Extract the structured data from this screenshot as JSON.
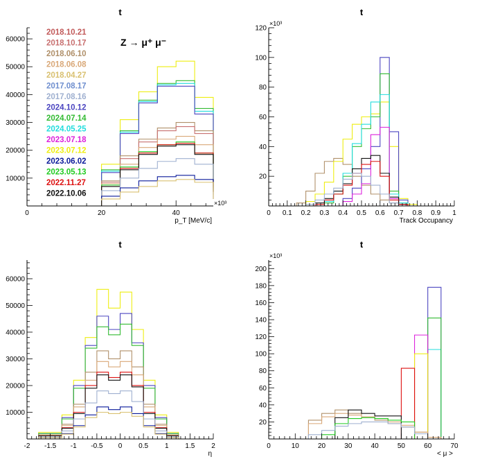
{
  "colors": {
    "2018.10.21": "#c25a5a",
    "2018.10.17": "#c87070",
    "2018.06.10": "#b0906a",
    "2018.06.08": "#d9a878",
    "2018.04.27": "#d9c070",
    "2017.08.17": "#6f8fcf",
    "2017.08.16": "#9fb0d0",
    "2024.10.12": "#4b45c0",
    "2024.07.14": "#33bb33",
    "2024.05.25": "#22dddd",
    "2023.07.18": "#dd22dd",
    "2023.07.12": "#eeee11",
    "2023.06.02": "#0a1a9a",
    "2023.05.13": "#22cc22",
    "2022.11.27": "#dd1111",
    "2022.10.06": "#111111"
  },
  "legend": {
    "entries": [
      "2018.10.21",
      "2018.10.17",
      "2018.06.10",
      "2018.06.08",
      "2018.04.27",
      "2017.08.17",
      "2017.08.16",
      "2024.10.12",
      "2024.07.14",
      "2024.05.25",
      "2023.07.18",
      "2023.07.12",
      "2023.06.02",
      "2023.05.13",
      "2022.11.27",
      "2022.10.06"
    ],
    "process_label": "Z → μ⁺ μ⁻"
  },
  "chart_data": [
    {
      "type": "histogram",
      "title": "t",
      "xlabel": "p_T [MeV/c]",
      "x_exponent": "×10³",
      "xlim": [
        0,
        50
      ],
      "ylim": [
        0,
        64000
      ],
      "xticks": [
        0,
        20,
        40
      ],
      "yticks": [
        10000,
        20000,
        30000,
        40000,
        50000,
        60000
      ],
      "bin_edges": [
        20,
        25,
        30,
        35,
        40,
        45,
        50
      ],
      "series": [
        {
          "name": "2023.07.12",
          "values": [
            15000,
            31000,
            41000,
            50000,
            52000,
            39000,
            10000
          ]
        },
        {
          "name": "2024.07.14",
          "values": [
            13000,
            27000,
            38000,
            44000,
            45000,
            35000,
            9000
          ]
        },
        {
          "name": "2024.05.25",
          "values": [
            12500,
            26500,
            37500,
            43500,
            44000,
            34000,
            8800
          ]
        },
        {
          "name": "2024.10.12",
          "values": [
            12000,
            26000,
            37000,
            43000,
            43000,
            33000,
            8500
          ]
        },
        {
          "name": "2018.06.10",
          "values": [
            9000,
            18000,
            24000,
            28000,
            30000,
            27000,
            7000
          ]
        },
        {
          "name": "2018.10.17",
          "values": [
            8500,
            17000,
            23000,
            27000,
            28500,
            26000,
            6500
          ]
        },
        {
          "name": "2018.06.08",
          "values": [
            8000,
            15000,
            21000,
            24000,
            25000,
            22000,
            6000
          ]
        },
        {
          "name": "2023.05.13",
          "values": [
            7500,
            14000,
            19500,
            22000,
            23000,
            19000,
            5500
          ]
        },
        {
          "name": "2022.11.27",
          "values": [
            7000,
            13500,
            19000,
            22000,
            22500,
            19000,
            5000
          ]
        },
        {
          "name": "2022.10.06",
          "values": [
            7000,
            13000,
            18500,
            21500,
            22000,
            18500,
            5000
          ]
        },
        {
          "name": "2017.08.16",
          "values": [
            5500,
            10000,
            13500,
            16000,
            17000,
            15000,
            4000
          ]
        },
        {
          "name": "2023.06.02",
          "values": [
            3500,
            6500,
            9000,
            10500,
            11000,
            9500,
            2500
          ]
        },
        {
          "name": "2018.04.27",
          "values": [
            2500,
            5000,
            7000,
            9000,
            9500,
            8500,
            2500
          ]
        }
      ]
    },
    {
      "type": "histogram",
      "title": "t",
      "xlabel": "Track Occupancy",
      "y_exponent": "×10³",
      "xlim": [
        0,
        1
      ],
      "ylim": [
        0,
        120
      ],
      "xticks": [
        0,
        0.1,
        0.2,
        0.3,
        0.4,
        0.5,
        0.6,
        0.7,
        0.8,
        0.9,
        1
      ],
      "yticks": [
        20,
        40,
        60,
        80,
        100,
        120
      ],
      "bin_edges": [
        0.15,
        0.2,
        0.25,
        0.3,
        0.35,
        0.4,
        0.45,
        0.5,
        0.55,
        0.6,
        0.65,
        0.7,
        0.75,
        0.8
      ],
      "series": [
        {
          "name": "2018.06.10",
          "values": [
            2,
            10,
            22,
            30,
            32,
            28,
            20,
            14,
            8,
            4,
            2,
            1,
            0
          ]
        },
        {
          "name": "2023.07.12",
          "values": [
            0,
            3,
            8,
            16,
            30,
            45,
            55,
            60,
            62,
            70,
            40,
            5,
            1
          ]
        },
        {
          "name": "2024.10.12",
          "values": [
            0,
            0,
            0,
            0,
            0,
            5,
            12,
            25,
            40,
            100,
            50,
            4,
            0
          ]
        },
        {
          "name": "2024.07.14",
          "values": [
            0,
            0,
            0,
            2,
            8,
            20,
            40,
            52,
            60,
            89,
            10,
            2,
            0
          ]
        },
        {
          "name": "2024.05.25",
          "values": [
            0,
            0,
            0,
            3,
            10,
            22,
            42,
            55,
            70,
            75,
            8,
            2,
            0
          ]
        },
        {
          "name": "2023.07.18",
          "values": [
            0,
            0,
            0,
            0,
            0,
            3,
            8,
            15,
            48,
            53,
            5,
            1,
            0
          ]
        },
        {
          "name": "2022.10.06",
          "values": [
            0,
            0,
            2,
            5,
            10,
            15,
            25,
            32,
            34,
            22,
            6,
            1,
            0
          ]
        },
        {
          "name": "2022.11.27",
          "values": [
            0,
            0,
            1,
            4,
            8,
            14,
            22,
            28,
            30,
            20,
            4,
            1,
            0
          ]
        },
        {
          "name": "2017.08.16",
          "values": [
            0,
            1,
            4,
            8,
            12,
            18,
            22,
            20,
            14,
            8,
            2,
            0,
            0
          ]
        }
      ]
    },
    {
      "type": "histogram",
      "title": "t",
      "xlabel": "η",
      "xlim": [
        -2,
        2
      ],
      "ylim": [
        0,
        67000
      ],
      "xticks": [
        -2,
        -1.5,
        -1,
        -0.5,
        0,
        0.5,
        1,
        1.5,
        2
      ],
      "yticks": [
        10000,
        20000,
        30000,
        40000,
        50000,
        60000
      ],
      "bin_edges": [
        -1.75,
        -1.25,
        -1,
        -0.75,
        -0.5,
        -0.25,
        0,
        0.25,
        0.5,
        0.75,
        1,
        1.25,
        1.75
      ],
      "series": [
        {
          "name": "2023.07.12",
          "values": [
            2500,
            9000,
            22000,
            38000,
            56000,
            49000,
            55000,
            41000,
            22000,
            9000,
            2500,
            0
          ]
        },
        {
          "name": "2024.10.12",
          "values": [
            2000,
            8000,
            20000,
            35000,
            46000,
            41000,
            47000,
            36000,
            20000,
            8000,
            2000,
            0
          ]
        },
        {
          "name": "2024.07.14",
          "values": [
            2000,
            7500,
            19000,
            34000,
            42000,
            39000,
            43000,
            35000,
            19000,
            7500,
            2000,
            0
          ]
        },
        {
          "name": "2018.06.10",
          "values": [
            1500,
            5500,
            13000,
            25000,
            33000,
            30000,
            33000,
            27000,
            13000,
            5500,
            1500,
            0
          ]
        },
        {
          "name": "2018.06.08",
          "values": [
            1500,
            5000,
            12000,
            22000,
            29000,
            27000,
            29000,
            24000,
            12000,
            5000,
            1500,
            0
          ]
        },
        {
          "name": "2022.11.27",
          "values": [
            1200,
            4200,
            10000,
            20000,
            25000,
            23000,
            25000,
            20000,
            10000,
            4200,
            1200,
            0
          ]
        },
        {
          "name": "2022.10.06",
          "values": [
            1200,
            4000,
            9500,
            19000,
            24000,
            22000,
            24000,
            19500,
            9500,
            4000,
            1200,
            0
          ]
        },
        {
          "name": "2017.08.16",
          "values": [
            800,
            3000,
            7500,
            13500,
            18000,
            17000,
            18000,
            14000,
            7500,
            3000,
            800,
            0
          ]
        },
        {
          "name": "2023.06.02",
          "values": [
            500,
            2000,
            5000,
            9000,
            12000,
            11000,
            12000,
            9500,
            5000,
            2000,
            500,
            0
          ]
        },
        {
          "name": "2018.04.27",
          "values": [
            500,
            1800,
            4500,
            8000,
            10000,
            9500,
            10000,
            8500,
            4500,
            1800,
            500,
            0
          ]
        }
      ]
    },
    {
      "type": "histogram",
      "title": "t",
      "xlabel": "< μ >",
      "y_exponent": "×10³",
      "xlim": [
        0,
        70
      ],
      "ylim": [
        0,
        210
      ],
      "xticks": [
        0,
        10,
        20,
        30,
        40,
        50,
        60,
        70
      ],
      "yticks": [
        20,
        40,
        60,
        80,
        100,
        120,
        140,
        160,
        180,
        200
      ],
      "bin_edges": [
        15,
        20,
        25,
        30,
        35,
        40,
        45,
        50,
        55,
        60,
        65
      ],
      "series": [
        {
          "name": "2024.10.12",
          "values": [
            0,
            0,
            0,
            0,
            0,
            0,
            0,
            0,
            0,
            178
          ]
        },
        {
          "name": "2024.05.25",
          "values": [
            0,
            0,
            0,
            0,
            0,
            0,
            0,
            0,
            0,
            105
          ]
        },
        {
          "name": "2024.07.14",
          "values": [
            0,
            0,
            0,
            0,
            0,
            0,
            0,
            0,
            0,
            142
          ]
        },
        {
          "name": "2023.07.18",
          "values": [
            0,
            0,
            0,
            0,
            0,
            0,
            0,
            0,
            122,
            0
          ]
        },
        {
          "name": "2023.07.12",
          "values": [
            0,
            0,
            0,
            0,
            0,
            0,
            0,
            0,
            100,
            0
          ]
        },
        {
          "name": "2022.11.27",
          "values": [
            0,
            0,
            0,
            0,
            0,
            0,
            0,
            83,
            0,
            0
          ]
        },
        {
          "name": "2018.06.10",
          "values": [
            22,
            30,
            34,
            30,
            26,
            22,
            18,
            14,
            8,
            2
          ]
        },
        {
          "name": "2018.06.08",
          "values": [
            18,
            26,
            30,
            28,
            26,
            24,
            20,
            16,
            8,
            2
          ]
        },
        {
          "name": "2022.10.06",
          "values": [
            0,
            0,
            25,
            34,
            30,
            27,
            27,
            0,
            0,
            0
          ]
        },
        {
          "name": "2023.05.13",
          "values": [
            0,
            5,
            18,
            24,
            25,
            24,
            22,
            20,
            0,
            0
          ]
        },
        {
          "name": "2017.08.16",
          "values": [
            5,
            10,
            15,
            18,
            20,
            20,
            18,
            14,
            6,
            0
          ]
        }
      ]
    }
  ]
}
